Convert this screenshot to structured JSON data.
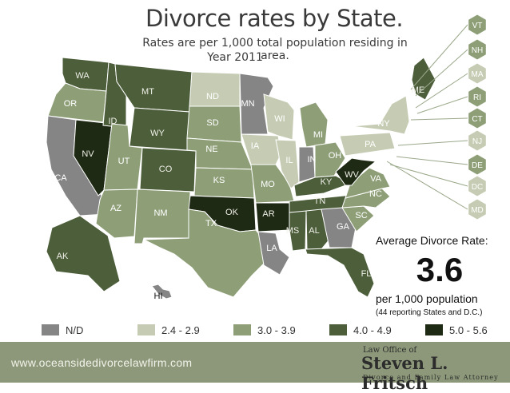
{
  "title": "Divorce rates by State.",
  "subtitle": "Rates are per 1,000 total population residing in area.",
  "year": "Year 2011",
  "average": {
    "label": "Average Divorce Rate:",
    "value": "3.6",
    "unit": "per 1,000 population",
    "note": "(44 reporting States and D.C.)"
  },
  "legend": [
    {
      "label": "N/D",
      "color": "#858585"
    },
    {
      "label": "2.4 - 2.9",
      "color": "#c5ccb3"
    },
    {
      "label": "3.0 - 3.9",
      "color": "#8e9f78"
    },
    {
      "label": "4.0 - 4.9",
      "color": "#4d5e3b"
    },
    {
      "label": "5.0 - 5.6",
      "color": "#1f2a14"
    }
  ],
  "states": [
    {
      "code": "WA",
      "class": "4.0 - 4.9"
    },
    {
      "code": "OR",
      "class": "3.0 - 3.9"
    },
    {
      "code": "CA",
      "class": "N/D"
    },
    {
      "code": "NV",
      "class": "5.0 - 5.6"
    },
    {
      "code": "ID",
      "class": "4.0 - 4.9"
    },
    {
      "code": "MT",
      "class": "4.0 - 4.9"
    },
    {
      "code": "WY",
      "class": "4.0 - 4.9"
    },
    {
      "code": "UT",
      "class": "3.0 - 3.9"
    },
    {
      "code": "AZ",
      "class": "3.0 - 3.9"
    },
    {
      "code": "CO",
      "class": "4.0 - 4.9"
    },
    {
      "code": "NM",
      "class": "3.0 - 3.9"
    },
    {
      "code": "ND",
      "class": "2.4 - 2.9"
    },
    {
      "code": "SD",
      "class": "3.0 - 3.9"
    },
    {
      "code": "NE",
      "class": "3.0 - 3.9"
    },
    {
      "code": "KS",
      "class": "3.0 - 3.9"
    },
    {
      "code": "OK",
      "class": "5.0 - 5.6"
    },
    {
      "code": "TX",
      "class": "3.0 - 3.9"
    },
    {
      "code": "MN",
      "class": "N/D"
    },
    {
      "code": "IA",
      "class": "2.4 - 2.9"
    },
    {
      "code": "MO",
      "class": "3.0 - 3.9"
    },
    {
      "code": "AR",
      "class": "5.0 - 5.6"
    },
    {
      "code": "LA",
      "class": "N/D"
    },
    {
      "code": "WI",
      "class": "2.4 - 2.9"
    },
    {
      "code": "IL",
      "class": "2.4 - 2.9"
    },
    {
      "code": "MI",
      "class": "3.0 - 3.9"
    },
    {
      "code": "IN",
      "class": "N/D"
    },
    {
      "code": "OH",
      "class": "3.0 - 3.9"
    },
    {
      "code": "KY",
      "class": "4.0 - 4.9"
    },
    {
      "code": "TN",
      "class": "4.0 - 4.9"
    },
    {
      "code": "MS",
      "class": "4.0 - 4.9"
    },
    {
      "code": "AL",
      "class": "4.0 - 4.9"
    },
    {
      "code": "GA",
      "class": "N/D"
    },
    {
      "code": "FL",
      "class": "4.0 - 4.9"
    },
    {
      "code": "SC",
      "class": "3.0 - 3.9"
    },
    {
      "code": "NC",
      "class": "3.0 - 3.9"
    },
    {
      "code": "VA",
      "class": "3.0 - 3.9"
    },
    {
      "code": "WV",
      "class": "5.0 - 5.6"
    },
    {
      "code": "PA",
      "class": "2.4 - 2.9"
    },
    {
      "code": "NY",
      "class": "2.4 - 2.9"
    },
    {
      "code": "ME",
      "class": "4.0 - 4.9"
    },
    {
      "code": "AK",
      "class": "4.0 - 4.9"
    },
    {
      "code": "HI",
      "class": "N/D"
    }
  ],
  "callouts": [
    {
      "code": "VT",
      "class": "3.0 - 3.9"
    },
    {
      "code": "NH",
      "class": "3.0 - 3.9"
    },
    {
      "code": "MA",
      "class": "2.4 - 2.9"
    },
    {
      "code": "RI",
      "class": "3.0 - 3.9"
    },
    {
      "code": "CT",
      "class": "3.0 - 3.9"
    },
    {
      "code": "NJ",
      "class": "2.4 - 2.9"
    },
    {
      "code": "DE",
      "class": "3.0 - 3.9"
    },
    {
      "code": "DC",
      "class": "2.4 - 2.9"
    },
    {
      "code": "MD",
      "class": "2.4 - 2.9"
    }
  ],
  "footer": {
    "url": "www.oceansidedivorcelawfirm.com",
    "law_office": "Law Office of",
    "name": "Steven L. Fritsch",
    "tagline": "Divorce and Family Law Attorney"
  }
}
